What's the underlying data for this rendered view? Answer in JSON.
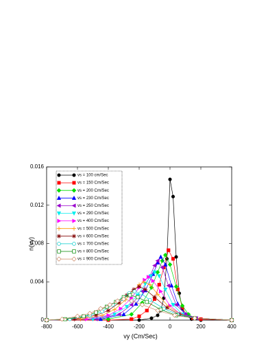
{
  "chart_data": {
    "type": "line",
    "xlabel": "vy (Cm/Sec)",
    "ylabel": "n(vy)",
    "xlim": [
      -800,
      400
    ],
    "xticks": [
      -800,
      -600,
      -400,
      -200,
      0,
      200,
      400
    ],
    "ylim": [
      0,
      0.016
    ],
    "yticks": [
      0,
      0.004,
      0.008,
      0.012,
      0.016
    ],
    "legend": "upper-left",
    "series": [
      {
        "name": "vs = 100 cm/Sec",
        "color": "#000000",
        "marker": "circle",
        "x": [
          -800,
          -400,
          -200,
          -120,
          -80,
          -60,
          -40,
          -20,
          0,
          20,
          40,
          60,
          80,
          100,
          140,
          200,
          400
        ],
        "values": [
          0,
          0,
          0,
          0.0002,
          0.0005,
          0.001,
          0.0023,
          0.0064,
          0.0147,
          0.0129,
          0.0066,
          0.0028,
          0.0012,
          0.0005,
          0.0001,
          0,
          0
        ]
      },
      {
        "name": "vs = 150 Cm/Sec",
        "color": "#ff0000",
        "marker": "square",
        "x": [
          -800,
          -400,
          -250,
          -200,
          -150,
          -100,
          -70,
          -40,
          -10,
          20,
          50,
          80,
          110,
          150,
          200,
          400
        ],
        "values": [
          0,
          0,
          0.0001,
          0.0004,
          0.001,
          0.0022,
          0.0037,
          0.0055,
          0.0073,
          0.0064,
          0.0032,
          0.0013,
          0.0005,
          0.0002,
          0.0001,
          0
        ]
      },
      {
        "name": "vs = 200 Cm/Sec",
        "color": "#00dd00",
        "marker": "diamond",
        "x": [
          -800,
          -400,
          -250,
          -180,
          -120,
          -80,
          -50,
          -30,
          0,
          40,
          80,
          120,
          160,
          400
        ],
        "values": [
          0,
          0.0001,
          0.0006,
          0.0018,
          0.0034,
          0.005,
          0.0062,
          0.0068,
          0.0058,
          0.0035,
          0.0015,
          0.0006,
          0.0002,
          0
        ]
      },
      {
        "name": "vs = 230 Cm/Sec",
        "color": "#0000ff",
        "marker": "triangle-up",
        "x": [
          -800,
          -450,
          -300,
          -220,
          -160,
          -110,
          -80,
          -60,
          -30,
          10,
          50,
          100,
          160,
          400
        ],
        "values": [
          0,
          0.0001,
          0.0006,
          0.0017,
          0.0031,
          0.0048,
          0.006,
          0.0066,
          0.0058,
          0.0036,
          0.0017,
          0.0006,
          0.0002,
          0
        ]
      },
      {
        "name": "vs = 250 Cm/Sec",
        "color": "#9900cc",
        "marker": "triangle-left",
        "x": [
          -800,
          -480,
          -330,
          -250,
          -180,
          -130,
          -100,
          -80,
          -50,
          -10,
          40,
          100,
          170,
          400
        ],
        "values": [
          0,
          0.0001,
          0.0006,
          0.0016,
          0.003,
          0.0046,
          0.0057,
          0.0062,
          0.0055,
          0.0036,
          0.0016,
          0.0006,
          0.0002,
          0
        ]
      },
      {
        "name": "vs = 290 Cm/Sec",
        "color": "#00eeee",
        "marker": "triangle-down",
        "x": [
          -800,
          -500,
          -360,
          -280,
          -210,
          -160,
          -125,
          -100,
          -70,
          -30,
          20,
          80,
          160,
          400
        ],
        "values": [
          0,
          0.0001,
          0.0006,
          0.0014,
          0.0026,
          0.0038,
          0.0046,
          0.005,
          0.0046,
          0.0032,
          0.0016,
          0.0006,
          0.0002,
          0
        ]
      },
      {
        "name": "vs = 400 Cm/Sec",
        "color": "#ff00ff",
        "marker": "triangle-right",
        "x": [
          -800,
          -540,
          -400,
          -320,
          -250,
          -200,
          -165,
          -140,
          -110,
          -60,
          0,
          70,
          160,
          400
        ],
        "values": [
          0,
          0.0001,
          0.0005,
          0.0012,
          0.0023,
          0.0034,
          0.0042,
          0.0045,
          0.0041,
          0.003,
          0.0015,
          0.0006,
          0.0002,
          0
        ]
      },
      {
        "name": "vs = 500 Cm/Sec",
        "color": "#ff9900",
        "marker": "plus",
        "x": [
          -800,
          -580,
          -440,
          -360,
          -290,
          -240,
          -200,
          -170,
          -130,
          -80,
          -10,
          70,
          160,
          400
        ],
        "values": [
          0,
          0.0001,
          0.0005,
          0.0011,
          0.0021,
          0.003,
          0.0037,
          0.004,
          0.0037,
          0.0027,
          0.0014,
          0.0006,
          0.0002,
          0
        ]
      },
      {
        "name": "vs = 600 Cm/Sec",
        "color": "#800000",
        "marker": "star",
        "x": [
          -800,
          -620,
          -480,
          -400,
          -330,
          -280,
          -235,
          -200,
          -160,
          -100,
          -20,
          60,
          160,
          400
        ],
        "values": [
          0,
          0.0001,
          0.0005,
          0.001,
          0.0018,
          0.0026,
          0.0032,
          0.0035,
          0.0032,
          0.0024,
          0.0013,
          0.0006,
          0.0002,
          0
        ]
      },
      {
        "name": "vs = 700 Cm/Sec",
        "color": "#00cccc",
        "marker": "circle-open",
        "x": [
          -800,
          -650,
          -520,
          -440,
          -370,
          -310,
          -265,
          -230,
          -190,
          -130,
          -40,
          50,
          160,
          400
        ],
        "values": [
          0,
          0.0001,
          0.0005,
          0.0009,
          0.0016,
          0.0022,
          0.0028,
          0.003,
          0.0028,
          0.0021,
          0.0012,
          0.0006,
          0.0002,
          0
        ]
      },
      {
        "name": "vs = 800 Cm/Sec",
        "color": "#008800",
        "marker": "square-open",
        "x": [
          -800,
          -680,
          -560,
          -480,
          -410,
          -350,
          -300,
          -260,
          -210,
          -150,
          -60,
          40,
          160,
          400
        ],
        "values": [
          0,
          0.0001,
          0.0004,
          0.0008,
          0.0014,
          0.0019,
          0.0024,
          0.0026,
          0.0024,
          0.0019,
          0.0011,
          0.0005,
          0.0002,
          0
        ]
      },
      {
        "name": "vs = 900 Cm/Sec",
        "color": "#cc8866",
        "marker": "diamond-open",
        "x": [
          -800,
          -700,
          -600,
          -520,
          -450,
          -390,
          -340,
          -300,
          -250,
          -180,
          -80,
          30,
          160,
          400
        ],
        "values": [
          0,
          0.0001,
          0.0004,
          0.0007,
          0.0012,
          0.0016,
          0.002,
          0.0022,
          0.002,
          0.0016,
          0.001,
          0.0005,
          0.0002,
          0
        ]
      }
    ]
  }
}
